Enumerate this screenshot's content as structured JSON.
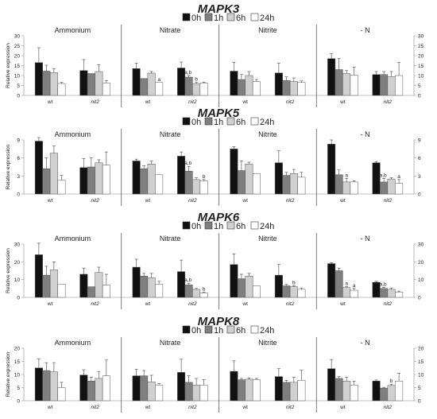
{
  "legend": {
    "items": [
      "0h",
      "1h",
      "6h",
      "24h"
    ],
    "colors": [
      "#111111",
      "#7f7f7f",
      "#d0d0d0",
      "#ffffff"
    ]
  },
  "chart_data": [
    {
      "type": "bar",
      "title": "MAPK3",
      "ylabel": "Relative expression",
      "ylim": [
        0,
        30
      ],
      "yticks": [
        "0",
        "5",
        "10",
        "15",
        "20",
        "25",
        "30"
      ],
      "legend_placement": "top-center",
      "panels": [
        {
          "name": "Ammonium",
          "genotypes": [
            {
              "label": "wt",
              "values": [
                16.5,
                12.2,
                11.5,
                6
              ],
              "errors": [
                7.5,
                3,
                2,
                0.5
              ],
              "letters": [
                "",
                "",
                "",
                ""
              ]
            },
            {
              "label": "nit2",
              "values": [
                12.5,
                11,
                12,
                6.3
              ],
              "errors": [
                5.5,
                0,
                3.5,
                1.2
              ],
              "letters": [
                "",
                "",
                "",
                ""
              ]
            }
          ]
        },
        {
          "name": "Nitrate",
          "genotypes": [
            {
              "label": "wt",
              "values": [
                13.5,
                8.5,
                11.2,
                6.5
              ],
              "errors": [
                2.8,
                0,
                0.8,
                0
              ],
              "letters": [
                "",
                "",
                "",
                "a"
              ]
            },
            {
              "label": "nit2",
              "values": [
                13.8,
                9.2,
                5.8,
                6.3
              ],
              "errors": [
                3,
                0.8,
                0.8,
                0.4
              ],
              "letters": [
                "",
                "a,b",
                "b",
                ""
              ]
            }
          ]
        },
        {
          "name": "Nitrite",
          "genotypes": [
            {
              "label": "wt",
              "values": [
                12.2,
                8,
                10,
                7
              ],
              "errors": [
                4.5,
                2.5,
                2,
                1
              ],
              "letters": [
                "",
                "",
                "",
                ""
              ]
            },
            {
              "label": "nit2",
              "values": [
                11.3,
                7.5,
                7,
                6.5
              ],
              "errors": [
                5,
                1.8,
                1.8,
                0.8
              ],
              "letters": [
                "",
                "",
                "",
                ""
              ]
            }
          ]
        },
        {
          "name": "- N",
          "genotypes": [
            {
              "label": "wt",
              "values": [
                18.5,
                13,
                11,
                10.2
              ],
              "errors": [
                2.5,
                5.5,
                1.5,
                4
              ],
              "letters": [
                "",
                "",
                "",
                ""
              ]
            },
            {
              "label": "nit2",
              "values": [
                10.5,
                10.5,
                9.5,
                10
              ],
              "errors": [
                1.5,
                1.5,
                2.5,
                6.5
              ],
              "letters": [
                "",
                "",
                "",
                ""
              ]
            }
          ]
        }
      ]
    },
    {
      "type": "bar",
      "title": "MAPK5",
      "ylabel": "Relative expression",
      "ylim": [
        0,
        9
      ],
      "yticks": [
        "0",
        "3",
        "6",
        "9"
      ],
      "legend_placement": "top-center",
      "panels": [
        {
          "name": "Ammonium",
          "genotypes": [
            {
              "label": "wt",
              "values": [
                8.8,
                4.2,
                6.8,
                2.3
              ],
              "errors": [
                0.6,
                1.8,
                1.2,
                0.8
              ],
              "letters": [
                "",
                "",
                "",
                ""
              ]
            },
            {
              "label": "nit2",
              "values": [
                4.4,
                4.5,
                5.2,
                4.8
              ],
              "errors": [
                1.5,
                1.5,
                0.5,
                2.2
              ],
              "letters": [
                "",
                "",
                "",
                ""
              ]
            }
          ]
        },
        {
          "name": "Nitrate",
          "genotypes": [
            {
              "label": "wt",
              "values": [
                5.5,
                4.2,
                5,
                3.2
              ],
              "errors": [
                0.3,
                0.5,
                0.5,
                0
              ],
              "letters": [
                "",
                "",
                "",
                ""
              ]
            },
            {
              "label": "nit2",
              "values": [
                6.3,
                3.8,
                2.4,
                2.2
              ],
              "errors": [
                0.7,
                0.8,
                0.3,
                0.2
              ],
              "letters": [
                "",
                "a,b",
                "",
                "b"
              ]
            }
          ]
        },
        {
          "name": "Nitrite",
          "genotypes": [
            {
              "label": "wt",
              "values": [
                7.5,
                3.9,
                5,
                3.4
              ],
              "errors": [
                0.4,
                1.6,
                0.3,
                0
              ],
              "letters": [
                "",
                "",
                "",
                ""
              ]
            },
            {
              "label": "nit2",
              "values": [
                5.2,
                3.1,
                3.4,
                2.8
              ],
              "errors": [
                2,
                0.5,
                0.7,
                0.8
              ],
              "letters": [
                "",
                "",
                "",
                ""
              ]
            }
          ]
        },
        {
          "name": "- N",
          "genotypes": [
            {
              "label": "wt",
              "values": [
                8.3,
                3.2,
                2,
                2
              ],
              "errors": [
                0.7,
                0.8,
                0.6,
                0.2
              ],
              "letters": [
                "",
                "",
                "a",
                ""
              ]
            },
            {
              "label": "nit2",
              "values": [
                5.2,
                2,
                2.5,
                1.8
              ],
              "errors": [
                0.2,
                0.6,
                0.2,
                0.6
              ],
              "letters": [
                "",
                "a,b",
                "",
                "a"
              ]
            }
          ]
        }
      ]
    },
    {
      "type": "bar",
      "title": "MAPK6",
      "ylabel": "Relative expression",
      "ylim": [
        0,
        30
      ],
      "yticks": [
        "0",
        "10",
        "20",
        "30"
      ],
      "legend_placement": "top-center",
      "panels": [
        {
          "name": "Ammonium",
          "genotypes": [
            {
              "label": "wt",
              "values": [
                24,
                12.5,
                15.5,
                7.5
              ],
              "errors": [
                6.5,
                5,
                4.5,
                0
              ],
              "letters": [
                "",
                "",
                "",
                ""
              ]
            },
            {
              "label": "nit2",
              "values": [
                13,
                6,
                14,
                7
              ],
              "errors": [
                3.5,
                0,
                3,
                6
              ],
              "letters": [
                "",
                "",
                "",
                ""
              ]
            }
          ]
        },
        {
          "name": "Nitrate",
          "genotypes": [
            {
              "label": "wt",
              "values": [
                17,
                12,
                11,
                7.5
              ],
              "errors": [
                4.5,
                1.5,
                2.5,
                1.5
              ],
              "letters": [
                "",
                "",
                "",
                ""
              ]
            },
            {
              "label": "nit2",
              "values": [
                14.5,
                7,
                4.5,
                2.5
              ],
              "errors": [
                6.5,
                1,
                0.5,
                0.5
              ],
              "letters": [
                "",
                "a,b",
                "",
                "b"
              ]
            }
          ]
        },
        {
          "name": "Nitrite",
          "genotypes": [
            {
              "label": "wt",
              "values": [
                18.5,
                10.5,
                12,
                6.5
              ],
              "errors": [
                6,
                2.5,
                1.5,
                0
              ],
              "letters": [
                "",
                "",
                "",
                ""
              ]
            },
            {
              "label": "nit2",
              "values": [
                12.5,
                6.5,
                6,
                4.5
              ],
              "errors": [
                6,
                0.8,
                0.6,
                0.8
              ],
              "letters": [
                "",
                "",
                "b",
                ""
              ]
            }
          ]
        },
        {
          "name": "- N",
          "genotypes": [
            {
              "label": "wt",
              "values": [
                19,
                15,
                5.5,
                4
              ],
              "errors": [
                0.5,
                1.5,
                0.5,
                1
              ],
              "letters": [
                "",
                "",
                "a",
                "a"
              ]
            },
            {
              "label": "nit2",
              "values": [
                8.5,
                5,
                4.5,
                3
              ],
              "errors": [
                0.5,
                0.6,
                0.8,
                0.5
              ],
              "letters": [
                "",
                "a,b",
                "",
                ""
              ]
            }
          ]
        }
      ]
    },
    {
      "type": "bar",
      "title": "MAPK8",
      "ylabel": "Relative expression",
      "ylim": [
        0,
        20
      ],
      "yticks": [
        "0",
        "5",
        "10",
        "15",
        "20"
      ],
      "legend_placement": "top-center",
      "panels": [
        {
          "name": "Ammonium",
          "genotypes": [
            {
              "label": "wt",
              "values": [
                12.5,
                11.5,
                11,
                5
              ],
              "errors": [
                3.5,
                3,
                3.5,
                2
              ],
              "letters": [
                "",
                "",
                "",
                ""
              ]
            },
            {
              "label": "nit2",
              "values": [
                9.8,
                7.5,
                8.5,
                9.5
              ],
              "errors": [
                2,
                1.5,
                2.5,
                6
              ]
            }
          ]
        },
        {
          "name": "Nitrate",
          "genotypes": [
            {
              "label": "wt",
              "values": [
                9.5,
                9.5,
                7.2,
                6
              ],
              "errors": [
                2.5,
                2,
                2.5,
                0.5
              ],
              "letters": [
                "",
                "",
                "",
                ""
              ]
            },
            {
              "label": "nit2",
              "values": [
                10.8,
                7,
                6,
                6
              ],
              "errors": [
                5,
                2.5,
                2.5,
                2
              ]
            }
          ]
        },
        {
          "name": "Nitrite",
          "genotypes": [
            {
              "label": "wt",
              "values": [
                11.2,
                8,
                8.2,
                8
              ],
              "errors": [
                4,
                0.5,
                0.5,
                0.5
              ],
              "letters": [
                "",
                "",
                "",
                ""
              ]
            },
            {
              "label": "nit2",
              "values": [
                9.2,
                7,
                7,
                7.8
              ],
              "errors": [
                3,
                0.8,
                2,
                3.8
              ]
            }
          ]
        },
        {
          "name": "- N",
          "genotypes": [
            {
              "label": "wt",
              "values": [
                12.2,
                8.5,
                7.5,
                6
              ],
              "errors": [
                3.5,
                0.7,
                1.5,
                1.5
              ],
              "letters": [
                "",
                "",
                "",
                ""
              ]
            },
            {
              "label": "nit2",
              "values": [
                7.5,
                4.8,
                5.8,
                7.5
              ],
              "errors": [
                0.4,
                0.3,
                0.5,
                3
              ],
              "letters": [
                "",
                "",
                "b",
                ""
              ]
            }
          ]
        }
      ]
    }
  ]
}
